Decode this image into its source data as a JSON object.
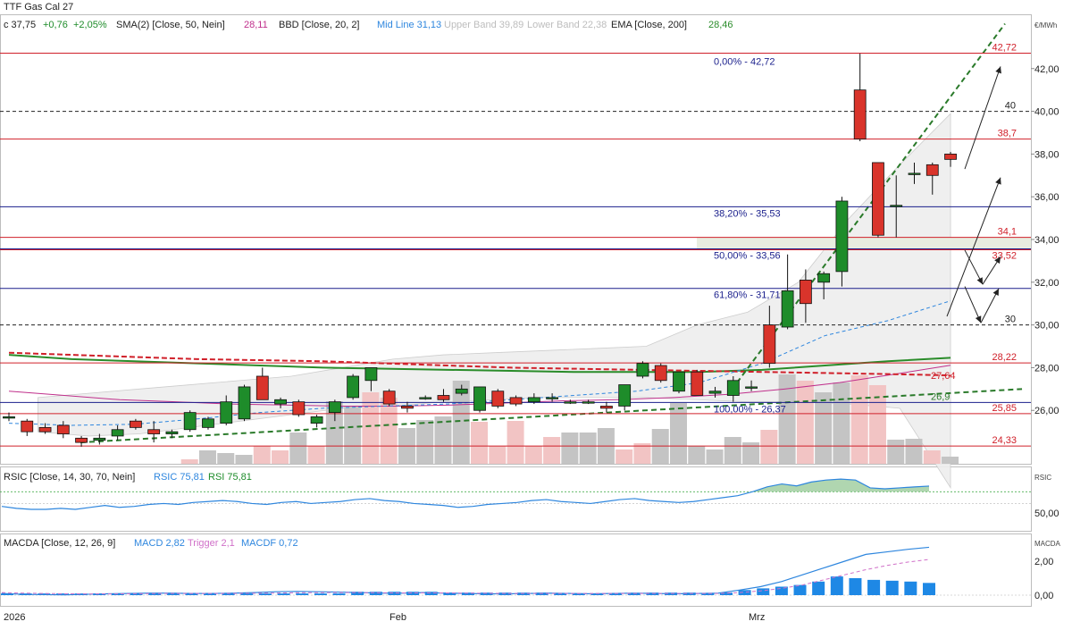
{
  "title": "TTF Gas Cal 27",
  "header": {
    "quote_close": "c 37,75",
    "quote_change": "+0,76",
    "quote_change_pct": "+2,05%",
    "sma_label": "SMA(2) [Close, 50, Nein]",
    "sma_value": "28,11",
    "bbd_label": "BBD [Close, 20, 2]",
    "bbd_mid": "Mid Line 31,13",
    "bbd_upper": "Upper Band 39,89",
    "bbd_lower": "Lower Band 22,38",
    "ema_label": "EMA [Close, 200]",
    "ema_value": "28,46"
  },
  "rsi_panel": {
    "label": "RSIC [Close, 14, 30, 70, Nein]",
    "rsic_value": "RSIC 75,81",
    "rsi_value": "RSI 75,81",
    "axis_title": "RSIC",
    "tick_label": "50,00"
  },
  "macd_panel": {
    "label": "MACDA [Close, 12, 26, 9]",
    "macd_value": "MACD 2,82",
    "trigger_value": "Trigger 2,1",
    "macdf_value": "MACDF 0,72",
    "axis_title": "MACDA",
    "tick_labels": [
      "2,00",
      "0,00"
    ]
  },
  "x_axis_labels": [
    "2026",
    "Feb",
    "Mrz"
  ],
  "colors": {
    "up": "#1e8c2a",
    "down": "#d9342b",
    "resistance": "#d0202a",
    "fib": "#1a1f8c",
    "ema": "#2a8c2a",
    "sma": "#c0308c",
    "bb_mid": "#2e86de",
    "trend": "#2a7a2a",
    "volume_up": "#c4c4c4",
    "volume_down": "#f2c4c4",
    "macd_hist": "#1e88e5"
  },
  "chart_data": {
    "type": "candlestick",
    "title": "TTF Gas Cal 27",
    "ylabel": "€/MWh",
    "ylim": [
      23.5,
      44.5
    ],
    "y_ticks": [
      "26,00",
      "28,00",
      "30,00",
      "32,00",
      "34,00",
      "36,00",
      "38,00",
      "40,00",
      "42,00"
    ],
    "y_tick_values": [
      26,
      28,
      30,
      32,
      34,
      36,
      38,
      40,
      42
    ],
    "candles": [
      {
        "o": 25.7,
        "h": 25.9,
        "l": 25.5,
        "c": 25.7
      },
      {
        "o": 25.5,
        "h": 25.6,
        "l": 24.8,
        "c": 25.0
      },
      {
        "o": 25.2,
        "h": 25.4,
        "l": 24.9,
        "c": 25.0
      },
      {
        "o": 25.3,
        "h": 25.5,
        "l": 24.7,
        "c": 24.9
      },
      {
        "o": 24.7,
        "h": 24.8,
        "l": 24.3,
        "c": 24.5
      },
      {
        "o": 24.6,
        "h": 24.9,
        "l": 24.4,
        "c": 24.7
      },
      {
        "o": 24.8,
        "h": 25.3,
        "l": 24.6,
        "c": 25.1
      },
      {
        "o": 25.5,
        "h": 25.6,
        "l": 25.1,
        "c": 25.2
      },
      {
        "o": 25.1,
        "h": 25.5,
        "l": 24.5,
        "c": 24.9
      },
      {
        "o": 24.9,
        "h": 25.1,
        "l": 24.7,
        "c": 25.0
      },
      {
        "o": 25.1,
        "h": 26.0,
        "l": 25.0,
        "c": 25.9
      },
      {
        "o": 25.2,
        "h": 25.7,
        "l": 25.1,
        "c": 25.6
      },
      {
        "o": 25.4,
        "h": 26.7,
        "l": 25.3,
        "c": 26.4
      },
      {
        "o": 25.6,
        "h": 27.2,
        "l": 25.5,
        "c": 27.1
      },
      {
        "o": 27.6,
        "h": 28.0,
        "l": 26.5,
        "c": 26.5
      },
      {
        "o": 26.3,
        "h": 26.6,
        "l": 26.1,
        "c": 26.5
      },
      {
        "o": 26.4,
        "h": 26.5,
        "l": 25.7,
        "c": 25.8
      },
      {
        "o": 25.4,
        "h": 25.8,
        "l": 25.2,
        "c": 25.7
      },
      {
        "o": 25.9,
        "h": 26.5,
        "l": 25.5,
        "c": 26.4
      },
      {
        "o": 26.6,
        "h": 27.7,
        "l": 26.5,
        "c": 27.6
      },
      {
        "o": 27.4,
        "h": 28.0,
        "l": 26.9,
        "c": 28.0
      },
      {
        "o": 26.9,
        "h": 27.0,
        "l": 26.2,
        "c": 26.3
      },
      {
        "o": 26.2,
        "h": 26.4,
        "l": 25.9,
        "c": 26.1
      },
      {
        "o": 26.6,
        "h": 26.7,
        "l": 26.5,
        "c": 26.6
      },
      {
        "o": 26.7,
        "h": 27.0,
        "l": 26.4,
        "c": 26.5
      },
      {
        "o": 26.8,
        "h": 27.2,
        "l": 26.7,
        "c": 27.0
      },
      {
        "o": 26.0,
        "h": 27.1,
        "l": 25.9,
        "c": 27.1
      },
      {
        "o": 26.9,
        "h": 27.0,
        "l": 26.1,
        "c": 26.2
      },
      {
        "o": 26.6,
        "h": 26.7,
        "l": 26.2,
        "c": 26.3
      },
      {
        "o": 26.4,
        "h": 26.8,
        "l": 26.3,
        "c": 26.6
      },
      {
        "o": 26.6,
        "h": 26.8,
        "l": 26.4,
        "c": 26.6
      },
      {
        "o": 26.4,
        "h": 26.5,
        "l": 26.3,
        "c": 26.4
      },
      {
        "o": 26.4,
        "h": 26.5,
        "l": 26.3,
        "c": 26.4
      },
      {
        "o": 26.2,
        "h": 26.4,
        "l": 25.9,
        "c": 26.1
      },
      {
        "o": 26.2,
        "h": 27.2,
        "l": 26.0,
        "c": 27.2
      },
      {
        "o": 27.6,
        "h": 28.3,
        "l": 27.5,
        "c": 28.2
      },
      {
        "o": 28.1,
        "h": 28.2,
        "l": 27.3,
        "c": 27.4
      },
      {
        "o": 26.9,
        "h": 27.8,
        "l": 26.8,
        "c": 27.8
      },
      {
        "o": 27.8,
        "h": 27.9,
        "l": 26.7,
        "c": 26.7
      },
      {
        "o": 26.8,
        "h": 27.1,
        "l": 26.6,
        "c": 26.9
      },
      {
        "o": 26.7,
        "h": 27.6,
        "l": 26.4,
        "c": 27.4
      },
      {
        "o": 27.1,
        "h": 27.4,
        "l": 26.9,
        "c": 27.1
      },
      {
        "o": 30.0,
        "h": 30.9,
        "l": 28.0,
        "c": 28.2
      },
      {
        "o": 29.9,
        "h": 33.3,
        "l": 29.8,
        "c": 31.6
      },
      {
        "o": 32.1,
        "h": 32.6,
        "l": 30.1,
        "c": 31.0
      },
      {
        "o": 32.0,
        "h": 32.5,
        "l": 31.2,
        "c": 32.4
      },
      {
        "o": 32.5,
        "h": 36.0,
        "l": 31.8,
        "c": 35.8
      },
      {
        "o": 41.0,
        "h": 42.7,
        "l": 38.6,
        "c": 38.7
      },
      {
        "o": 37.6,
        "h": 37.6,
        "l": 34.1,
        "c": 34.2
      },
      {
        "o": 35.6,
        "h": 37.0,
        "l": 34.1,
        "c": 35.6
      },
      {
        "o": 37.1,
        "h": 37.6,
        "l": 36.6,
        "c": 37.1
      },
      {
        "o": 37.5,
        "h": 37.6,
        "l": 36.1,
        "c": 37.0
      },
      {
        "o": 38.0,
        "h": 38.1,
        "l": 37.4,
        "c": 37.75
      }
    ],
    "bollinger": {
      "upper": [
        26.6,
        26.8,
        27.0,
        27.2,
        27.4,
        27.6,
        28.0,
        28.4,
        28.6,
        28.7,
        28.8,
        28.9,
        29.0,
        30.0,
        30.6,
        32.0,
        35.0,
        37.5,
        39.89
      ],
      "lower": [
        25.0,
        24.8,
        24.9,
        25.2,
        25.5,
        25.8,
        26.1,
        26.2,
        26.4,
        26.5,
        26.6,
        26.6,
        26.6,
        26.5,
        26.4,
        26.4,
        26.3,
        26.1,
        22.38
      ]
    },
    "sma": [
      26.9,
      26.7,
      26.5,
      26.4,
      26.3,
      26.25,
      26.2,
      26.2,
      26.25,
      26.35,
      26.45,
      26.5,
      26.6,
      26.75,
      27.0,
      27.3,
      27.7,
      28.11
    ],
    "ema": [
      28.6,
      28.4,
      28.3,
      28.2,
      28.1,
      28.0,
      27.95,
      27.9,
      27.85,
      27.8,
      27.8,
      27.8,
      27.9,
      28.1,
      28.3,
      28.46
    ],
    "bb_mid": [
      25.4,
      25.3,
      25.35,
      25.6,
      25.9,
      26.1,
      26.2,
      26.3,
      26.5,
      26.7,
      26.9,
      27.3,
      28.2,
      29.5,
      30.2,
      31.13
    ],
    "sma_long": [
      28.7,
      28.6,
      28.5,
      28.4,
      28.35,
      28.3,
      28.2,
      28.1,
      28.0,
      27.95,
      27.9,
      27.85,
      27.8,
      27.75,
      27.7,
      27.64
    ],
    "resistance_lines": [
      {
        "value": 42.72,
        "label": "42,72"
      },
      {
        "value": 38.7,
        "label": "38,7"
      },
      {
        "value": 34.1,
        "label": "34,1"
      },
      {
        "value": 33.52,
        "label": "33,52"
      },
      {
        "value": 28.22,
        "label": "28,22"
      },
      {
        "value": 25.85,
        "label": "25,85"
      },
      {
        "value": 24.33,
        "label": "24,33"
      }
    ],
    "level_lines": [
      {
        "value": 40,
        "label": "40"
      },
      {
        "value": 30,
        "label": "30"
      }
    ],
    "fib_levels": [
      {
        "value": 42.72,
        "label": "0,00% - 42,72"
      },
      {
        "value": 35.53,
        "label": "38,20% - 35,53"
      },
      {
        "value": 33.56,
        "label": "50,00% - 33,56"
      },
      {
        "value": 31.71,
        "label": "61,80% - 31,71"
      },
      {
        "value": 26.37,
        "label": "100,00% - 26,37"
      }
    ],
    "trend_labels": [
      "27,64",
      "26,9"
    ],
    "volume": [
      {
        "v": 0,
        "up": true
      },
      {
        "v": 0,
        "up": true
      },
      {
        "v": 0,
        "up": true
      },
      {
        "v": 0,
        "up": true
      },
      {
        "v": 0.05,
        "up": false
      },
      {
        "v": 0.15,
        "up": true
      },
      {
        "v": 0.12,
        "up": true
      },
      {
        "v": 0.1,
        "up": true
      },
      {
        "v": 0.2,
        "up": false
      },
      {
        "v": 0.15,
        "up": false
      },
      {
        "v": 0.35,
        "up": true
      },
      {
        "v": 0.2,
        "up": false
      },
      {
        "v": 0.7,
        "up": true
      },
      {
        "v": 0.65,
        "up": true
      },
      {
        "v": 0.8,
        "up": false
      },
      {
        "v": 0.74,
        "up": false
      },
      {
        "v": 0.4,
        "up": true
      },
      {
        "v": 0.49,
        "up": true
      },
      {
        "v": 0.53,
        "up": true
      },
      {
        "v": 0.93,
        "up": true
      },
      {
        "v": 0.47,
        "up": false
      },
      {
        "v": 0.2,
        "up": false
      },
      {
        "v": 0.48,
        "up": false
      },
      {
        "v": 0.2,
        "up": false
      },
      {
        "v": 0.3,
        "up": false
      },
      {
        "v": 0.35,
        "up": true
      },
      {
        "v": 0.35,
        "up": true
      },
      {
        "v": 0.4,
        "up": true
      },
      {
        "v": 0.16,
        "up": false
      },
      {
        "v": 0.23,
        "up": false
      },
      {
        "v": 0.39,
        "up": true
      },
      {
        "v": 0.68,
        "up": true
      },
      {
        "v": 0.2,
        "up": true
      },
      {
        "v": 0.16,
        "up": true
      },
      {
        "v": 0.3,
        "up": true
      },
      {
        "v": 0.24,
        "up": true
      },
      {
        "v": 0.38,
        "up": false
      },
      {
        "v": 1.0,
        "up": true
      },
      {
        "v": 0.93,
        "up": false
      },
      {
        "v": 0.8,
        "up": true
      },
      {
        "v": 0.91,
        "up": true
      },
      {
        "v": 0.99,
        "up": false
      },
      {
        "v": 0.88,
        "up": false
      },
      {
        "v": 0.27,
        "up": true
      },
      {
        "v": 0.28,
        "up": true
      },
      {
        "v": 0.15,
        "up": false
      },
      {
        "v": 0.08,
        "up": true
      }
    ],
    "rsi": [
      55,
      53,
      52,
      52,
      53,
      52,
      54,
      56,
      54,
      55,
      57,
      58,
      57,
      59,
      60,
      61,
      60,
      58,
      57,
      59,
      60,
      58,
      59,
      60,
      62,
      63,
      61,
      60,
      58,
      57,
      56,
      54,
      55,
      57,
      58,
      59,
      61,
      62,
      60,
      59,
      58,
      60,
      62,
      63,
      61,
      60,
      59,
      60,
      62,
      64,
      66,
      70,
      75,
      78,
      76,
      80,
      82,
      83,
      82,
      74,
      73,
      74,
      75,
      75.81
    ],
    "macd": [
      0.1,
      0.05,
      0.03,
      0.02,
      0.05,
      0.08,
      0.1,
      0.12,
      0.12,
      0.1,
      0.1,
      0.12,
      0.15,
      0.2,
      0.22,
      0.2,
      0.18,
      0.15,
      0.12,
      0.12,
      0.15,
      0.12,
      0.1,
      0.08,
      0.08,
      0.1,
      0.12,
      0.1,
      0.08,
      0.1,
      0.12,
      0.1,
      0.08,
      0.1,
      0.12,
      0.3,
      0.5,
      0.8,
      1.2,
      1.6,
      2.0,
      2.4,
      2.55,
      2.7,
      2.82
    ],
    "trigger": [
      0.15,
      0.12,
      0.1,
      0.08,
      0.07,
      0.07,
      0.08,
      0.09,
      0.1,
      0.1,
      0.1,
      0.1,
      0.11,
      0.12,
      0.14,
      0.15,
      0.15,
      0.15,
      0.14,
      0.13,
      0.13,
      0.13,
      0.12,
      0.11,
      0.1,
      0.1,
      0.1,
      0.1,
      0.1,
      0.1,
      0.1,
      0.1,
      0.1,
      0.1,
      0.1,
      0.15,
      0.25,
      0.4,
      0.6,
      0.9,
      1.2,
      1.5,
      1.75,
      1.95,
      2.1
    ],
    "macd_hist": [
      0.1,
      0.1,
      0.1,
      0.1,
      0.1,
      0.1,
      0.1,
      0.1,
      0.1,
      0.1,
      0.1,
      0.1,
      0.1,
      0.1,
      0.1,
      0.1,
      0.1,
      0.1,
      0.1,
      0.2,
      0.2,
      0.2,
      0.2,
      0.2,
      0.15,
      0.15,
      0.15,
      0.15,
      0.15,
      0.15,
      0.1,
      0.1,
      0.1,
      0.1,
      0.1,
      0.15,
      0.15,
      0.15,
      0.1,
      0.15,
      0.3,
      0.4,
      0.5,
      0.6,
      0.8,
      1.1,
      1.0,
      0.9,
      0.85,
      0.8,
      0.72
    ]
  }
}
